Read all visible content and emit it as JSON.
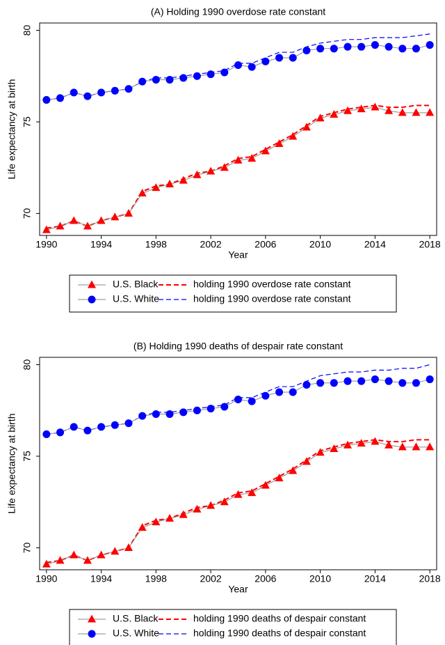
{
  "chart_data": [
    {
      "type": "line",
      "title": "(A) Holding 1990 overdose rate constant",
      "x_label": "Year",
      "y_label": "Life expectancy at birth",
      "x": [
        1990,
        1991,
        1992,
        1993,
        1994,
        1995,
        1996,
        1997,
        1998,
        1999,
        2000,
        2001,
        2002,
        2003,
        2004,
        2005,
        2006,
        2007,
        2008,
        2009,
        2010,
        2011,
        2012,
        2013,
        2014,
        2015,
        2016,
        2017,
        2018
      ],
      "xlim": [
        1989.5,
        2018.5
      ],
      "xticks": [
        1990,
        1994,
        1998,
        2002,
        2006,
        2010,
        2014,
        2018
      ],
      "ylim": [
        68.8,
        80.4
      ],
      "yticks": [
        70,
        75,
        80
      ],
      "series": [
        {
          "name": "U.S. Black",
          "color": "#ff0000",
          "marker": "triangle",
          "linestyle": "solid",
          "values": [
            69.1,
            69.3,
            69.6,
            69.3,
            69.6,
            69.8,
            70.0,
            71.1,
            71.4,
            71.6,
            71.8,
            72.1,
            72.3,
            72.5,
            72.9,
            73.0,
            73.4,
            73.8,
            74.2,
            74.7,
            75.2,
            75.4,
            75.6,
            75.7,
            75.8,
            75.6,
            75.5,
            75.5,
            75.5
          ]
        },
        {
          "name": "U.S. White",
          "color": "#0000ff",
          "marker": "circle",
          "linestyle": "solid",
          "values": [
            76.2,
            76.3,
            76.6,
            76.4,
            76.6,
            76.7,
            76.8,
            77.2,
            77.3,
            77.3,
            77.4,
            77.5,
            77.6,
            77.7,
            78.1,
            78.0,
            78.3,
            78.5,
            78.5,
            78.9,
            79.0,
            79.0,
            79.1,
            79.1,
            79.2,
            79.1,
            79.0,
            79.0,
            79.2
          ]
        },
        {
          "name": "holding 1990 overdose rate constant",
          "color": "#ff0000",
          "marker": null,
          "linestyle": "dashed",
          "values": [
            69.2,
            69.3,
            69.6,
            69.3,
            69.6,
            69.8,
            70.0,
            71.2,
            71.5,
            71.6,
            71.9,
            72.2,
            72.3,
            72.6,
            73.0,
            73.1,
            73.5,
            73.9,
            74.3,
            74.8,
            75.3,
            75.5,
            75.7,
            75.8,
            75.9,
            75.8,
            75.8,
            75.9,
            75.9
          ]
        },
        {
          "name": "holding 1990 overdose rate constant",
          "color": "#0000ff",
          "marker": null,
          "linestyle": "dashed",
          "values": [
            76.2,
            76.3,
            76.6,
            76.4,
            76.6,
            76.7,
            76.8,
            77.2,
            77.4,
            77.4,
            77.5,
            77.6,
            77.7,
            77.8,
            78.2,
            78.2,
            78.5,
            78.8,
            78.8,
            79.1,
            79.3,
            79.4,
            79.5,
            79.5,
            79.6,
            79.6,
            79.6,
            79.7,
            79.8
          ]
        }
      ]
    },
    {
      "type": "line",
      "title": "(B) Holding 1990 deaths of despair rate constant",
      "x_label": "Year",
      "y_label": "Life expectancy at birth",
      "x": [
        1990,
        1991,
        1992,
        1993,
        1994,
        1995,
        1996,
        1997,
        1998,
        1999,
        2000,
        2001,
        2002,
        2003,
        2004,
        2005,
        2006,
        2007,
        2008,
        2009,
        2010,
        2011,
        2012,
        2013,
        2014,
        2015,
        2016,
        2017,
        2018
      ],
      "xlim": [
        1989.5,
        2018.5
      ],
      "xticks": [
        1990,
        1994,
        1998,
        2002,
        2006,
        2010,
        2014,
        2018
      ],
      "ylim": [
        68.8,
        80.4
      ],
      "yticks": [
        70,
        75,
        80
      ],
      "series": [
        {
          "name": "U.S. Black",
          "color": "#ff0000",
          "marker": "triangle",
          "linestyle": "solid",
          "values": [
            69.1,
            69.3,
            69.6,
            69.3,
            69.6,
            69.8,
            70.0,
            71.1,
            71.4,
            71.6,
            71.8,
            72.1,
            72.3,
            72.5,
            72.9,
            73.0,
            73.4,
            73.8,
            74.2,
            74.7,
            75.2,
            75.4,
            75.6,
            75.7,
            75.8,
            75.6,
            75.5,
            75.5,
            75.5
          ]
        },
        {
          "name": "U.S. White",
          "color": "#0000ff",
          "marker": "circle",
          "linestyle": "solid",
          "values": [
            76.2,
            76.3,
            76.6,
            76.4,
            76.6,
            76.7,
            76.8,
            77.2,
            77.3,
            77.3,
            77.4,
            77.5,
            77.6,
            77.7,
            78.1,
            78.0,
            78.3,
            78.5,
            78.5,
            78.9,
            79.0,
            79.0,
            79.1,
            79.1,
            79.2,
            79.1,
            79.0,
            79.0,
            79.2
          ]
        },
        {
          "name": "holding 1990 deaths of despair constant",
          "color": "#ff0000",
          "marker": null,
          "linestyle": "dashed",
          "values": [
            69.2,
            69.3,
            69.6,
            69.3,
            69.6,
            69.8,
            70.0,
            71.2,
            71.5,
            71.6,
            71.9,
            72.2,
            72.3,
            72.6,
            73.0,
            73.1,
            73.5,
            73.9,
            74.3,
            74.8,
            75.3,
            75.5,
            75.7,
            75.8,
            75.9,
            75.8,
            75.8,
            75.9,
            75.9
          ]
        },
        {
          "name": "holding 1990 deaths of despair constant",
          "color": "#0000ff",
          "marker": null,
          "linestyle": "dashed",
          "values": [
            76.2,
            76.3,
            76.6,
            76.4,
            76.6,
            76.7,
            76.8,
            77.2,
            77.4,
            77.4,
            77.5,
            77.6,
            77.7,
            77.8,
            78.2,
            78.2,
            78.5,
            78.8,
            78.8,
            79.1,
            79.4,
            79.5,
            79.6,
            79.6,
            79.7,
            79.7,
            79.8,
            79.8,
            80.0
          ]
        }
      ]
    }
  ]
}
